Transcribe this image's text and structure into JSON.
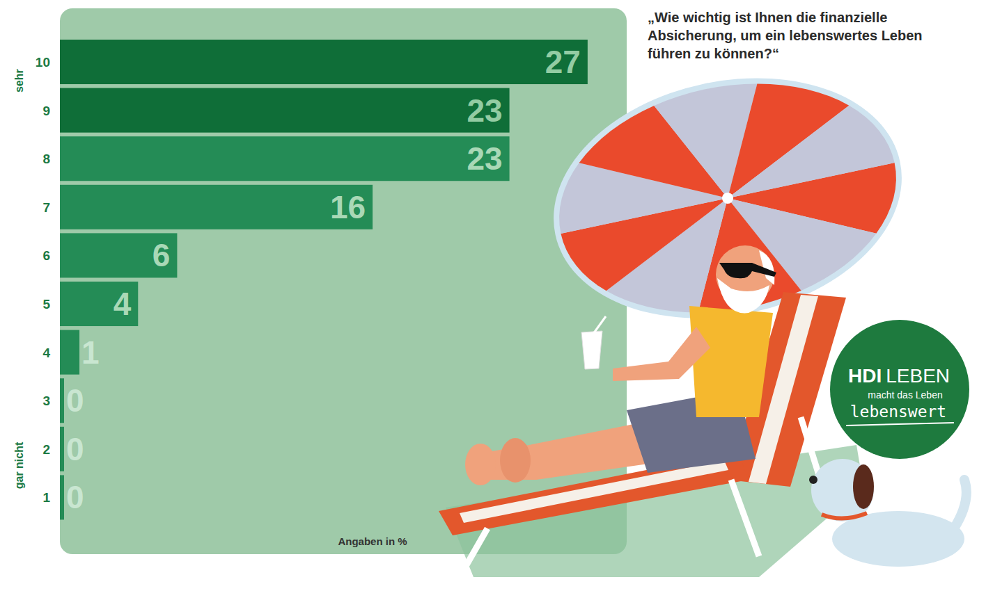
{
  "chart_data": {
    "type": "bar",
    "orientation": "horizontal",
    "title": "„Wie wichtig ist Ihnen die finanzielle Absicherung, um ein lebenswertes Leben führen zu können?“",
    "categories": [
      "10",
      "9",
      "8",
      "7",
      "6",
      "5",
      "4",
      "3",
      "2",
      "1"
    ],
    "values": [
      27,
      23,
      23,
      16,
      6,
      4,
      1,
      0,
      0,
      0
    ],
    "colors": [
      "#0f6e38",
      "#0f6e38",
      "#248c56",
      "#248c56",
      "#248c56",
      "#248c56",
      "#248c56",
      "#248c56",
      "#248c56",
      "#248c56"
    ],
    "xlim": [
      0,
      29
    ],
    "xlabel": "Angaben in %",
    "annotations": [
      "sehr",
      "gar nicht"
    ],
    "data_labels": true,
    "tick_labels": "y",
    "grid": false,
    "logo": {
      "name": "HDI",
      "line": "LEBEN",
      "claim": [
        "macht das Leben",
        "lebenswert"
      ]
    }
  }
}
